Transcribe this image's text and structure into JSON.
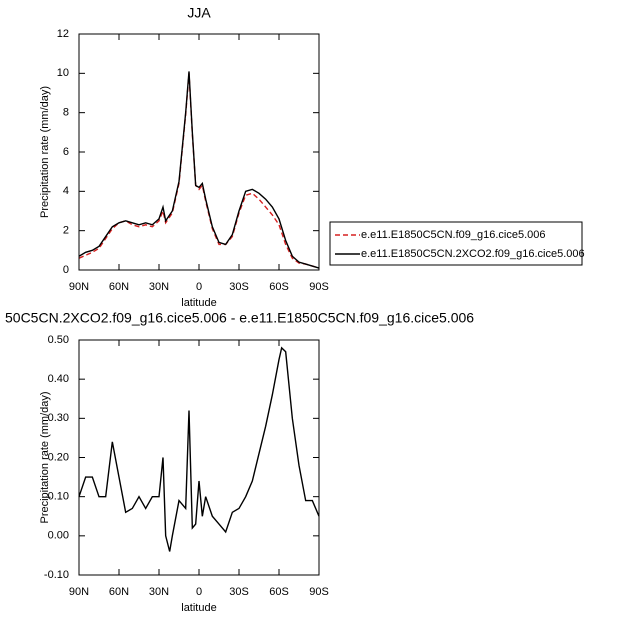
{
  "chart_data": [
    {
      "type": "line",
      "title": "JJA",
      "xlabel": "latitude",
      "ylabel": "Precipitation rate (mm/day)",
      "x": [
        90,
        85,
        80,
        75,
        70,
        65,
        60,
        55,
        50,
        45,
        40,
        35,
        30,
        27,
        25,
        20,
        15,
        10,
        7.5,
        5,
        2.5,
        0,
        -2.5,
        -5,
        -10,
        -15,
        -20,
        -25,
        -30,
        -35,
        -40,
        -45,
        -50,
        -55,
        -60,
        -65,
        -70,
        -75,
        -80,
        -85,
        -90
      ],
      "series": [
        {
          "name": "e.e11.E1850C5CN.f09_g16.cice5.006",
          "color": "#d62020",
          "dashed": true,
          "values": [
            0.6,
            0.75,
            0.9,
            1.1,
            1.6,
            2.1,
            2.4,
            2.5,
            2.3,
            2.2,
            2.3,
            2.2,
            2.5,
            3.0,
            2.4,
            2.9,
            4.4,
            7.9,
            10.0,
            6.9,
            4.3,
            4.1,
            4.3,
            3.5,
            2.1,
            1.3,
            1.3,
            1.7,
            2.9,
            3.8,
            3.9,
            3.6,
            3.2,
            2.8,
            2.3,
            1.3,
            0.6,
            0.35,
            0.3,
            0.2,
            0.1
          ]
        },
        {
          "name": "e.e11.E1850C5CN.2XCO2.f09_g16.cice5.006",
          "color": "#000000",
          "dashed": false,
          "values": [
            0.7,
            0.9,
            1.0,
            1.2,
            1.7,
            2.2,
            2.4,
            2.5,
            2.4,
            2.3,
            2.4,
            2.3,
            2.6,
            3.2,
            2.5,
            3.0,
            4.5,
            8.0,
            10.1,
            7.0,
            4.3,
            4.2,
            4.4,
            3.6,
            2.2,
            1.4,
            1.3,
            1.8,
            3.0,
            4.0,
            4.1,
            3.9,
            3.6,
            3.2,
            2.6,
            1.5,
            0.7,
            0.4,
            0.3,
            0.2,
            0.1
          ]
        }
      ],
      "xlim": [
        90,
        -90
      ],
      "xticks": [
        {
          "value": 90,
          "label": "90N"
        },
        {
          "value": 60,
          "label": "60N"
        },
        {
          "value": 30,
          "label": "30N"
        },
        0,
        {
          "value": -30,
          "label": "30S"
        },
        {
          "value": -60,
          "label": "60S"
        },
        {
          "value": -90,
          "label": "90S"
        }
      ],
      "ylim": [
        0,
        12
      ],
      "yticks": [
        0,
        2,
        4,
        6,
        8,
        10,
        12
      ],
      "legend": "right"
    },
    {
      "type": "line",
      "title": "50C5CN.2XCO2.f09_g16.cice5.006 - e.e11.E1850C5CN.f09_g16.cice5.006",
      "xlabel": "latitude",
      "ylabel": "Precipitation rate (mm/day)",
      "x": [
        90,
        85,
        80,
        75,
        70,
        65,
        60,
        55,
        50,
        45,
        40,
        35,
        30,
        27,
        25,
        22,
        20,
        15,
        10,
        7.5,
        5,
        2.5,
        0,
        -2.5,
        -5,
        -10,
        -15,
        -20,
        -25,
        -30,
        -35,
        -40,
        -45,
        -50,
        -55,
        -60,
        -62,
        -65,
        -70,
        -75,
        -80,
        -85,
        -90
      ],
      "color": "#000000",
      "values": [
        0.1,
        0.15,
        0.15,
        0.1,
        0.1,
        0.24,
        0.15,
        0.06,
        0.07,
        0.1,
        0.07,
        0.1,
        0.1,
        0.2,
        0.0,
        -0.04,
        0.0,
        0.09,
        0.07,
        0.32,
        0.02,
        0.03,
        0.14,
        0.05,
        0.1,
        0.05,
        0.03,
        0.01,
        0.06,
        0.07,
        0.1,
        0.14,
        0.21,
        0.28,
        0.36,
        0.45,
        0.48,
        0.47,
        0.3,
        0.18,
        0.09,
        0.09,
        0.05
      ],
      "xlim": [
        90,
        -90
      ],
      "xticks": [
        {
          "value": 90,
          "label": "90N"
        },
        {
          "value": 60,
          "label": "60N"
        },
        {
          "value": 30,
          "label": "30N"
        },
        0,
        {
          "value": -30,
          "label": "30S"
        },
        {
          "value": -60,
          "label": "60S"
        },
        {
          "value": -90,
          "label": "90S"
        }
      ],
      "ylim": [
        -0.1,
        0.5
      ],
      "yticks": [
        {
          "value": -0.1,
          "label": "-0.10"
        },
        {
          "value": 0,
          "label": "0.00"
        },
        {
          "value": 0.1,
          "label": "0.10"
        },
        {
          "value": 0.2,
          "label": "0.20"
        },
        {
          "value": 0.3,
          "label": "0.30"
        },
        {
          "value": 0.4,
          "label": "0.40"
        },
        {
          "value": 0.5,
          "label": "0.50"
        }
      ]
    }
  ]
}
